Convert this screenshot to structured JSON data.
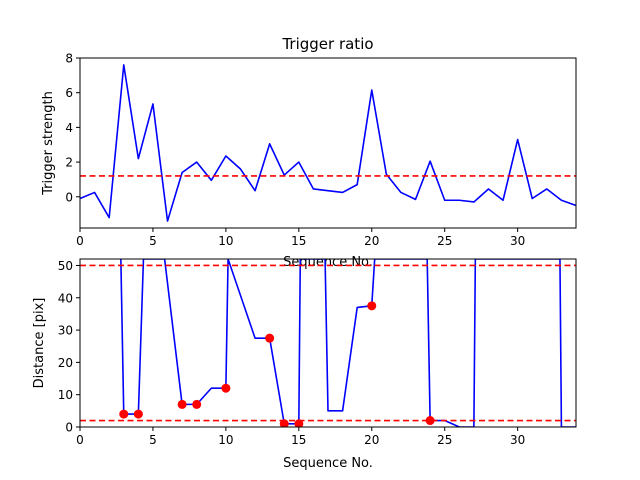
{
  "chart_data": [
    {
      "type": "line",
      "title": "Trigger ratio",
      "xlabel": "Sequence No.",
      "ylabel": "Trigger strength",
      "xlim": [
        0,
        34
      ],
      "ylim": [
        -1.8,
        8
      ],
      "xticks": [
        0,
        5,
        10,
        15,
        20,
        25,
        30
      ],
      "yticks": [
        0,
        2,
        4,
        6,
        8
      ],
      "grid": false,
      "colors": {
        "line": "#0000ff",
        "threshold": "#ff0000"
      },
      "threshold_lines": [
        1.2
      ],
      "series": [
        {
          "x": [
            0,
            1,
            2,
            3,
            4,
            5,
            6,
            7,
            8,
            9,
            10,
            11,
            12,
            13,
            14,
            15,
            16,
            17,
            18,
            19,
            20,
            21,
            22,
            23,
            24,
            25,
            26,
            27,
            28,
            29,
            30,
            31,
            32,
            33,
            34
          ],
          "y": [
            -0.1,
            0.25,
            -1.2,
            7.6,
            2.2,
            5.35,
            -1.4,
            1.4,
            2.0,
            0.95,
            2.35,
            1.6,
            0.35,
            3.05,
            1.25,
            2.0,
            0.45,
            0.35,
            0.25,
            0.7,
            6.15,
            1.3,
            0.25,
            -0.15,
            2.05,
            -0.2,
            -0.2,
            -0.3,
            0.45,
            -0.2,
            3.3,
            -0.1,
            0.45,
            -0.2,
            -0.5
          ]
        }
      ]
    },
    {
      "type": "line",
      "title": "",
      "xlabel": "Sequence No.",
      "ylabel": "Distance [pix]",
      "xlim": [
        0,
        34
      ],
      "ylim": [
        0,
        52
      ],
      "xticks": [
        0,
        5,
        10,
        15,
        20,
        25,
        30
      ],
      "yticks": [
        0,
        10,
        20,
        30,
        40,
        50
      ],
      "grid": false,
      "colors": {
        "line": "#0000ff",
        "threshold": "#ff0000",
        "markers": "#ff0000"
      },
      "threshold_lines": [
        50,
        2
      ],
      "series": [
        {
          "x": [
            2.8,
            3,
            4,
            4.35,
            5.8,
            7,
            8,
            9,
            10,
            10.15,
            12,
            12.8,
            13,
            14,
            15,
            15.1,
            16.8,
            17,
            18,
            19,
            20,
            20.2,
            23.8,
            24,
            25,
            26,
            27,
            27.1,
            32.9,
            33,
            34
          ],
          "y": [
            52,
            4,
            4,
            52,
            52,
            7,
            7,
            12,
            12,
            52,
            27.5,
            27.5,
            27.5,
            1,
            1,
            52,
            52,
            5,
            5,
            37,
            37.5,
            52,
            52,
            2,
            2,
            0,
            0,
            52,
            52,
            0,
            0
          ]
        }
      ],
      "markers": {
        "x": [
          3,
          4,
          7,
          8,
          10,
          13,
          14,
          15,
          20,
          24
        ],
        "y": [
          4,
          4,
          7,
          7,
          12,
          27.5,
          1,
          1,
          37.5,
          2
        ]
      }
    }
  ]
}
